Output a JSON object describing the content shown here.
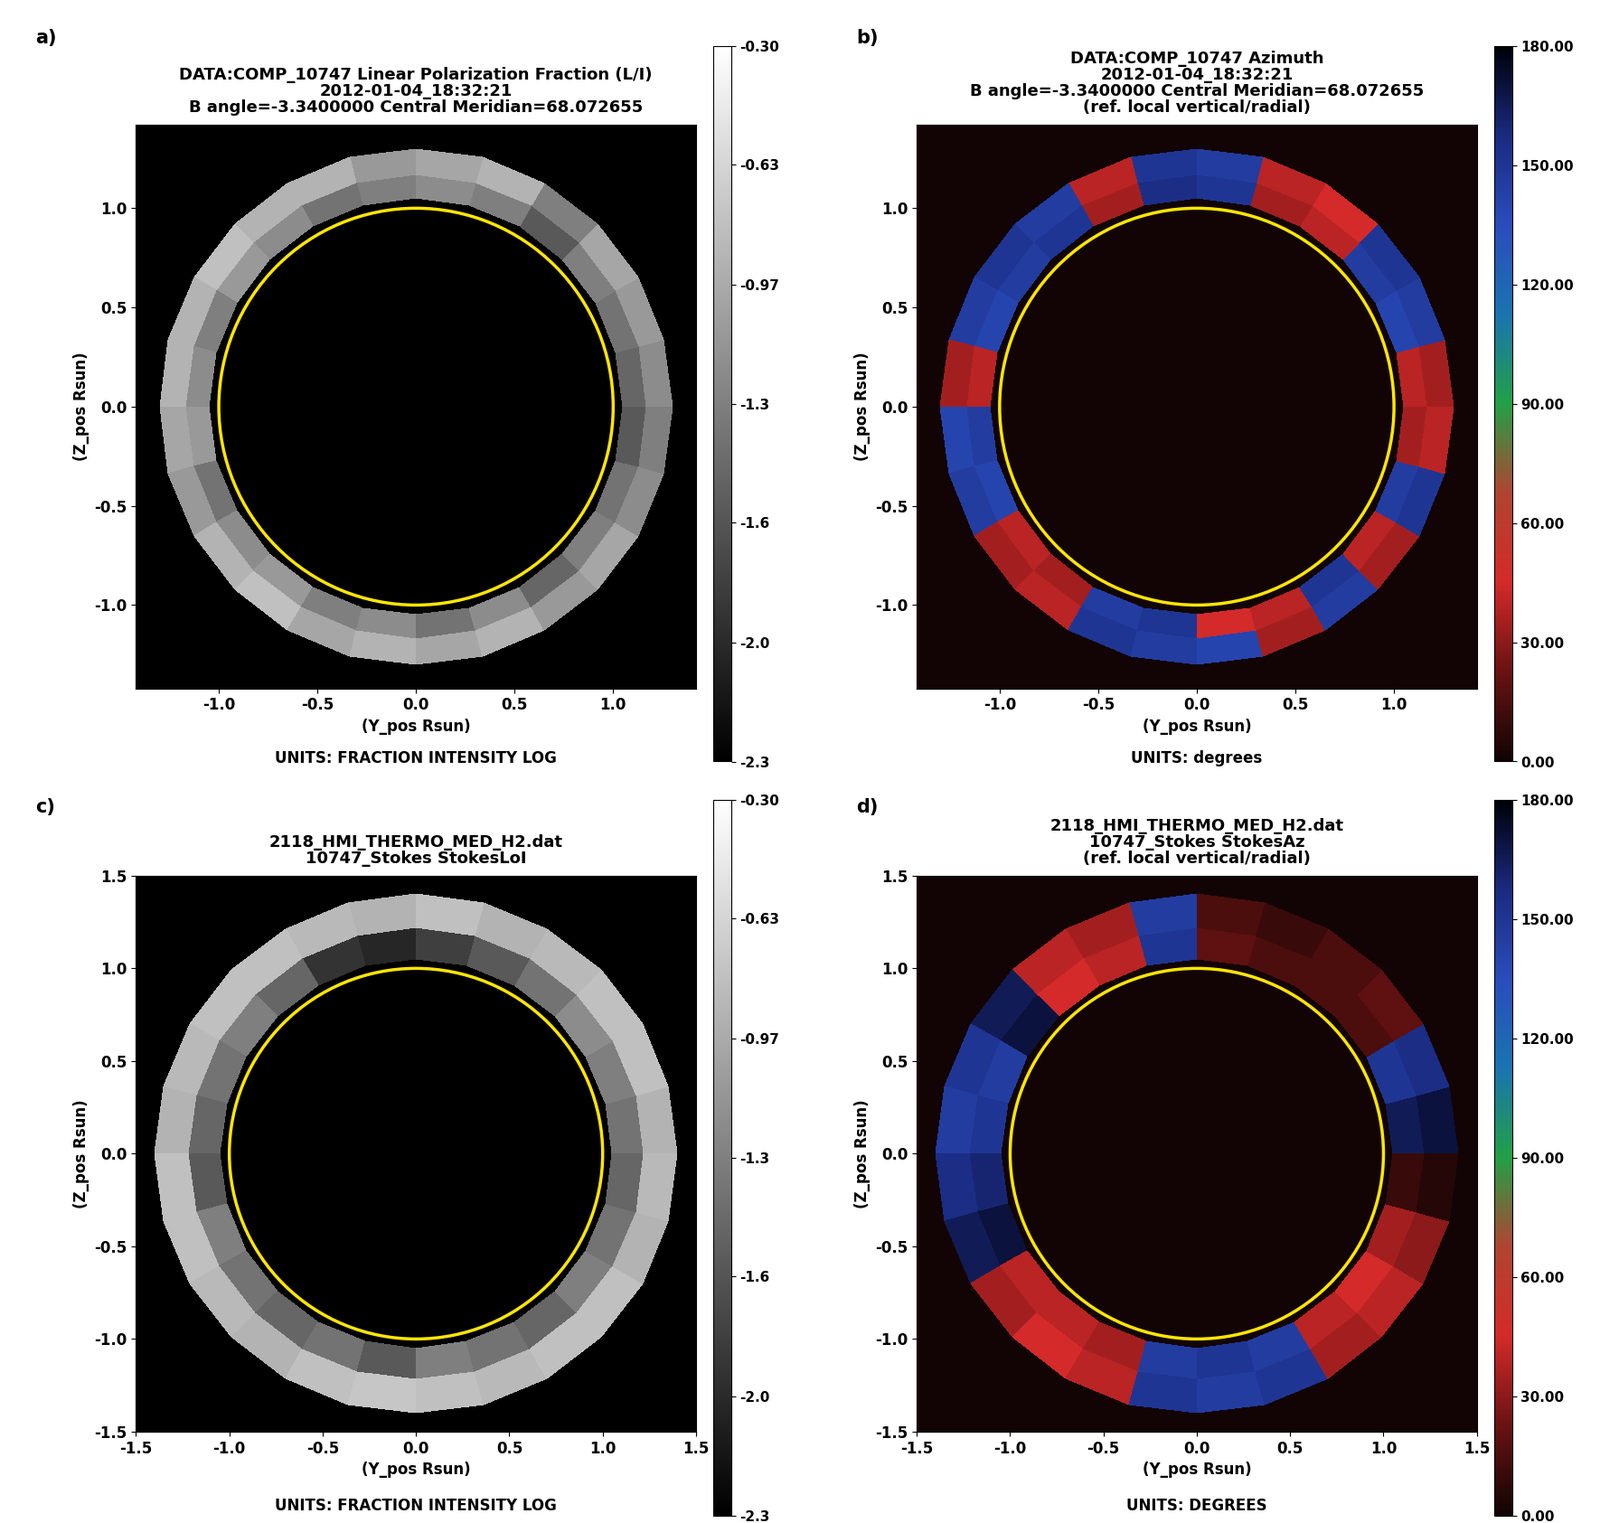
{
  "chart_data": [
    {
      "type": "heatmap",
      "annotation": "a)",
      "title": [
        "DATA:COMP_10747 Linear Polarization Fraction (L/I)",
        "2012-01-04_18:32:21",
        "B angle=-3.3400000 Central Meridian=68.072655"
      ],
      "x_label": "(Y_pos Rsun)",
      "y_label": "(Z_pos Rsun)",
      "note": "UNITS: FRACTION INTENSITY LOG",
      "xlim": [
        -1.42,
        1.42
      ],
      "ylim": [
        -1.42,
        1.42
      ],
      "xticks": [
        -1.0,
        -0.5,
        0.0,
        0.5,
        1.0
      ],
      "yticks": [
        -1.0,
        -0.5,
        0.0,
        0.5,
        1.0
      ],
      "limb_radius": 1.0,
      "radii": [
        1.05,
        1.17,
        1.3
      ],
      "angles_deg": [
        0,
        15,
        30,
        45,
        60,
        75,
        90,
        105,
        120,
        135,
        150,
        165,
        180,
        195,
        210,
        225,
        240,
        255,
        270,
        285,
        300,
        315,
        330,
        345,
        360
      ],
      "cells": [
        [
          -1.5,
          -1.4,
          -1.3,
          -1.6,
          -1.3,
          -1.2,
          -1.3,
          -1.4,
          -1.2,
          -1.1,
          -1.3,
          -1.2,
          -1.1,
          -1.4,
          -1.2,
          -1.1,
          -1.3,
          -1.2,
          -1.4,
          -1.2,
          -1.5,
          -1.3,
          -1.4,
          -1.6
        ],
        [
          -1.2,
          -1.1,
          -1.0,
          -1.3,
          -0.9,
          -1.0,
          -1.1,
          -0.9,
          -0.9,
          -0.8,
          -0.9,
          -0.9,
          -1.0,
          -1.1,
          -0.9,
          -0.8,
          -1.0,
          -0.9,
          -1.0,
          -0.9,
          -1.1,
          -1.0,
          -1.2,
          -1.3
        ]
      ],
      "colors": [
        "#000000",
        "#ffffff"
      ],
      "colorbar": {
        "range": [
          -2.3,
          -0.3
        ],
        "ticks": [
          {
            "value": -0.3,
            "label": "-0.30"
          },
          {
            "value": -0.633,
            "label": "-0.63"
          },
          {
            "value": -0.967,
            "label": "-0.97"
          },
          -1.3,
          {
            "value": -1.633,
            "label": "-1.6"
          },
          {
            "value": -1.967,
            "label": "-2.0"
          },
          -2.3
        ]
      }
    },
    {
      "type": "heatmap",
      "annotation": "b)",
      "title": [
        "DATA:COMP_10747 Azimuth",
        "2012-01-04_18:32:21",
        "B angle=-3.3400000 Central Meridian=68.072655",
        "(ref. local vertical/radial)"
      ],
      "x_label": "(Y_pos Rsun)",
      "y_label": "(Z_pos Rsun)",
      "note": "UNITS: degrees",
      "xlim": [
        -1.42,
        1.42
      ],
      "ylim": [
        -1.42,
        1.42
      ],
      "xticks": [
        -1.0,
        -0.5,
        0.0,
        0.5,
        1.0
      ],
      "yticks": [
        -1.0,
        -0.5,
        0.0,
        0.5,
        1.0
      ],
      "limb_radius": 1.0,
      "radii": [
        1.05,
        1.17,
        1.3
      ],
      "angles_deg": [
        0,
        15,
        30,
        45,
        60,
        75,
        90,
        105,
        120,
        135,
        150,
        165,
        180,
        195,
        210,
        225,
        240,
        255,
        270,
        285,
        300,
        315,
        330,
        345,
        360
      ],
      "cells": [
        [
          40,
          140,
          145,
          40,
          35,
          150,
          155,
          35,
          150,
          145,
          140,
          40,
          145,
          140,
          40,
          35,
          145,
          150,
          45,
          40,
          150,
          40,
          145,
          35
        ],
        [
          35,
          145,
          150,
          45,
          40,
          145,
          150,
          40,
          145,
          150,
          145,
          35,
          140,
          145,
          35,
          40,
          150,
          145,
          140,
          35,
          145,
          35,
          150,
          40
        ]
      ],
      "colors": [
        "#120404",
        "#6a1212",
        "#d42a2a",
        "#b04432",
        "#22a046",
        "#1a74b0",
        "#2a4cbc",
        "#1a2a80",
        "#000008"
      ],
      "colorbar": {
        "range": [
          0,
          180
        ],
        "ticks": [
          {
            "value": 0,
            "label": "0.00"
          },
          {
            "value": 30,
            "label": "30.00"
          },
          {
            "value": 60,
            "label": "60.00"
          },
          {
            "value": 90,
            "label": "90.00"
          },
          {
            "value": 120,
            "label": "120.00"
          },
          {
            "value": 150,
            "label": "150.00"
          },
          {
            "value": 180,
            "label": "180.00"
          }
        ]
      }
    },
    {
      "type": "heatmap",
      "annotation": "c)",
      "title": [
        "2118_HMI_THERMO_MED_H2.dat",
        "10747_Stokes StokesLoI"
      ],
      "x_label": "(Y_pos Rsun)",
      "y_label": "(Z_pos Rsun)",
      "note": "UNITS: FRACTION INTENSITY LOG",
      "xlim": [
        -1.5,
        1.5
      ],
      "ylim": [
        -1.5,
        1.5
      ],
      "xticks": [
        -1.5,
        -1.0,
        -0.5,
        0.0,
        0.5,
        1.0,
        1.5
      ],
      "yticks": [
        -1.5,
        -1.0,
        -0.5,
        0.0,
        0.5,
        1.0,
        1.5
      ],
      "limb_radius": 1.0,
      "radii": [
        1.05,
        1.22,
        1.4
      ],
      "angles_deg": [
        0,
        15,
        30,
        45,
        60,
        75,
        90,
        105,
        120,
        135,
        150,
        165,
        180,
        195,
        210,
        225,
        240,
        255,
        270,
        285,
        300,
        315,
        330,
        345,
        360
      ],
      "cells": [
        [
          -1.4,
          -1.3,
          -1.2,
          -1.4,
          -1.6,
          -1.8,
          -2.0,
          -1.9,
          -1.5,
          -1.3,
          -1.4,
          -1.5,
          -1.6,
          -1.3,
          -1.4,
          -1.5,
          -1.4,
          -1.6,
          -1.3,
          -1.4,
          -1.5,
          -1.3,
          -1.4,
          -1.5
        ],
        [
          -0.9,
          -0.8,
          -0.8,
          -0.85,
          -0.9,
          -0.8,
          -0.9,
          -0.85,
          -0.8,
          -0.8,
          -0.85,
          -0.9,
          -0.8,
          -0.8,
          -0.85,
          -0.9,
          -0.8,
          -0.75,
          -0.8,
          -0.85,
          -0.8,
          -0.8,
          -0.9,
          -0.85
        ]
      ],
      "colors": [
        "#000000",
        "#ffffff"
      ],
      "colorbar": {
        "range": [
          -2.3,
          -0.3
        ],
        "ticks": [
          {
            "value": -0.3,
            "label": "-0.30"
          },
          {
            "value": -0.633,
            "label": "-0.63"
          },
          {
            "value": -0.967,
            "label": "-0.97"
          },
          -1.3,
          {
            "value": -1.633,
            "label": "-1.6"
          },
          {
            "value": -1.967,
            "label": "-2.0"
          },
          -2.3
        ]
      }
    },
    {
      "type": "heatmap",
      "annotation": "d)",
      "title": [
        "2118_HMI_THERMO_MED_H2.dat",
        "10747_Stokes StokesAz",
        "(ref. local vertical/radial)"
      ],
      "x_label": "(Y_pos Rsun)",
      "y_label": "(Z_pos Rsun)",
      "note": "UNITS: DEGREES",
      "xlim": [
        -1.5,
        1.5
      ],
      "ylim": [
        -1.5,
        1.5
      ],
      "xticks": [
        -1.5,
        -1.0,
        -0.5,
        0.0,
        0.5,
        1.0,
        1.5
      ],
      "yticks": [
        -1.5,
        -1.0,
        -0.5,
        0.0,
        0.5,
        1.0,
        1.5
      ],
      "limb_radius": 1.0,
      "radii": [
        1.05,
        1.22,
        1.4
      ],
      "angles_deg": [
        0,
        15,
        30,
        45,
        60,
        75,
        90,
        105,
        120,
        135,
        150,
        165,
        180,
        195,
        210,
        225,
        240,
        255,
        270,
        285,
        300,
        315,
        330,
        345,
        360
      ],
      "cells": [
        [
          165,
          150,
          15,
          15,
          15,
          20,
          150,
          40,
          45,
          170,
          145,
          150,
          160,
          170,
          40,
          40,
          35,
          145,
          150,
          145,
          40,
          45,
          35,
          10
        ],
        [
          170,
          155,
          20,
          15,
          10,
          15,
          145,
          35,
          40,
          165,
          150,
          145,
          155,
          165,
          35,
          45,
          40,
          150,
          145,
          150,
          35,
          40,
          30,
          5
        ]
      ],
      "colors": [
        "#120404",
        "#6a1212",
        "#d42a2a",
        "#b04432",
        "#22a046",
        "#1a74b0",
        "#2a4cbc",
        "#1a2a80",
        "#000008"
      ],
      "colorbar": {
        "range": [
          0,
          180
        ],
        "ticks": [
          {
            "value": 0,
            "label": "0.00"
          },
          {
            "value": 30,
            "label": "30.00"
          },
          {
            "value": 60,
            "label": "60.00"
          },
          {
            "value": 90,
            "label": "90.00"
          },
          {
            "value": 120,
            "label": "120.00"
          },
          {
            "value": 150,
            "label": "150.00"
          },
          {
            "value": 180,
            "label": "180.00"
          }
        ]
      }
    }
  ]
}
